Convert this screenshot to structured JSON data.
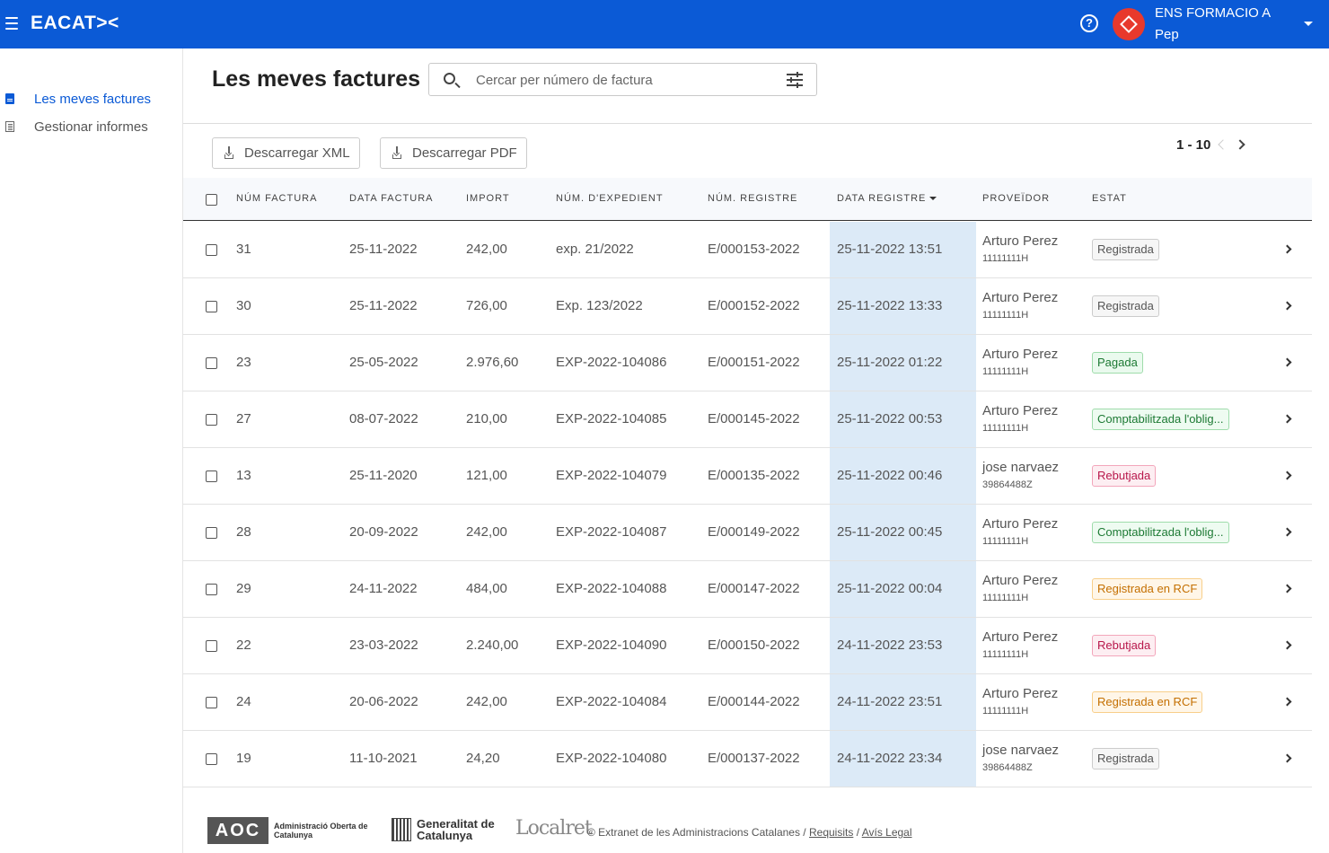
{
  "header": {
    "logo": "EACAT><",
    "help_glyph": "?",
    "org_name": "ENS FORMACIO A",
    "user": "Pep"
  },
  "sidebar": {
    "items": [
      {
        "label": "Les meves factures",
        "icon": "document-icon",
        "active": true
      },
      {
        "label": "Gestionar informes",
        "icon": "list-icon",
        "active": false
      }
    ]
  },
  "main": {
    "title": "Les meves factures",
    "search": {
      "placeholder": "Cercar per número de factura",
      "value": ""
    },
    "buttons": {
      "xml": "Descarregar XML",
      "pdf": "Descarregar PDF"
    },
    "pagination": "1 - 10"
  },
  "table": {
    "columns": [
      "NÚM FACTURA",
      "DATA FACTURA",
      "IMPORT",
      "NÚM. D'EXPEDIENT",
      "NÚM. REGISTRE",
      "DATA REGISTRE",
      "PROVEÏDOR",
      "ESTAT"
    ],
    "sorted_column": "DATA REGISTRE",
    "rows": [
      {
        "num": "31",
        "date": "25-11-2022",
        "amount": "242,00",
        "exp": "exp. 21/2022",
        "reg": "E/000153-2022",
        "reg_date": "25-11-2022 13:51",
        "prov": "Arturo Perez",
        "prov_id": "11111111H",
        "status": "Registrada",
        "status_type": "reg"
      },
      {
        "num": "30",
        "date": "25-11-2022",
        "amount": "726,00",
        "exp": "Exp. 123/2022",
        "reg": "E/000152-2022",
        "reg_date": "25-11-2022 13:33",
        "prov": "Arturo Perez",
        "prov_id": "11111111H",
        "status": "Registrada",
        "status_type": "reg"
      },
      {
        "num": "23",
        "date": "25-05-2022",
        "amount": "2.976,60",
        "exp": "EXP-2022-104086",
        "reg": "E/000151-2022",
        "reg_date": "25-11-2022 01:22",
        "prov": "Arturo Perez",
        "prov_id": "11111111H",
        "status": "Pagada",
        "status_type": "paid"
      },
      {
        "num": "27",
        "date": "08-07-2022",
        "amount": "210,00",
        "exp": "EXP-2022-104085",
        "reg": "E/000145-2022",
        "reg_date": "25-11-2022 00:53",
        "prov": "Arturo Perez",
        "prov_id": "11111111H",
        "status": "Comptabilitzada l'oblig...",
        "status_type": "comp"
      },
      {
        "num": "13",
        "date": "25-11-2020",
        "amount": "121,00",
        "exp": "EXP-2022-104079",
        "reg": "E/000135-2022",
        "reg_date": "25-11-2022 00:46",
        "prov": "jose narvaez",
        "prov_id": "39864488Z",
        "status": "Rebutjada",
        "status_type": "rej"
      },
      {
        "num": "28",
        "date": "20-09-2022",
        "amount": "242,00",
        "exp": "EXP-2022-104087",
        "reg": "E/000149-2022",
        "reg_date": "25-11-2022 00:45",
        "prov": "Arturo Perez",
        "prov_id": "11111111H",
        "status": "Comptabilitzada l'oblig...",
        "status_type": "comp"
      },
      {
        "num": "29",
        "date": "24-11-2022",
        "amount": "484,00",
        "exp": "EXP-2022-104088",
        "reg": "E/000147-2022",
        "reg_date": "25-11-2022 00:04",
        "prov": "Arturo Perez",
        "prov_id": "11111111H",
        "status": "Registrada en RCF",
        "status_type": "rcf"
      },
      {
        "num": "22",
        "date": "23-03-2022",
        "amount": "2.240,00",
        "exp": "EXP-2022-104090",
        "reg": "E/000150-2022",
        "reg_date": "24-11-2022 23:53",
        "prov": "Arturo Perez",
        "prov_id": "11111111H",
        "status": "Rebutjada",
        "status_type": "rej"
      },
      {
        "num": "24",
        "date": "20-06-2022",
        "amount": "242,00",
        "exp": "EXP-2022-104084",
        "reg": "E/000144-2022",
        "reg_date": "24-11-2022 23:51",
        "prov": "Arturo Perez",
        "prov_id": "11111111H",
        "status": "Registrada en RCF",
        "status_type": "rcf"
      },
      {
        "num": "19",
        "date": "11-10-2021",
        "amount": "24,20",
        "exp": "EXP-2022-104080",
        "reg": "E/000137-2022",
        "reg_date": "24-11-2022 23:34",
        "prov": "jose narvaez",
        "prov_id": "39864488Z",
        "status": "Registrada",
        "status_type": "reg"
      }
    ]
  },
  "footer": {
    "aoc_mark": "AOC",
    "aoc_text": "Administració Oberta de Catalunya",
    "generalitat_text": "Generalitat de Catalunya",
    "localret_text": "Localret",
    "copyright": "© Extranet de les Administracions Catalanes /",
    "link_requisits": "Requisits",
    "separator": "/",
    "link_avis": "Avís Legal"
  },
  "colors": {
    "topbar": "#0b5ad6",
    "accent": "#0b5ad6",
    "highlight_column": "#dceaf7",
    "avatar": "#e8392c"
  }
}
